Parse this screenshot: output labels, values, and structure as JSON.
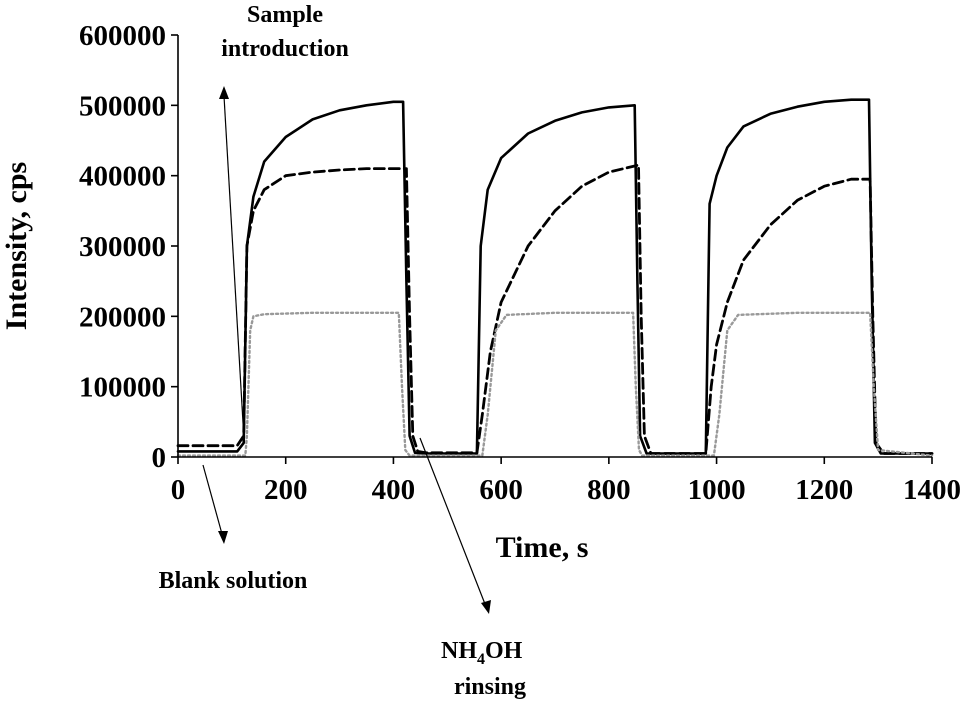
{
  "chart_data": {
    "type": "line",
    "xlabel": "Time, s",
    "ylabel": "Intensity, cps",
    "xlim": [
      0,
      1400
    ],
    "ylim": [
      0,
      600000
    ],
    "xticks": [
      0,
      200,
      400,
      600,
      800,
      1000,
      1200,
      1400
    ],
    "xtick_labels": [
      "0",
      "200",
      "400",
      "600",
      "800",
      "1000",
      "1200",
      "1400"
    ],
    "yticks": [
      0,
      100000,
      200000,
      300000,
      400000,
      500000,
      600000
    ],
    "ytick_labels": [
      "0",
      "100000",
      "200000",
      "300000",
      "400000",
      "500000",
      "600000"
    ],
    "grid": false,
    "series": [
      {
        "style": "solid",
        "color": "#000000",
        "x": [
          0,
          110,
          122,
          128,
          140,
          160,
          200,
          250,
          300,
          350,
          400,
          418,
          424,
          430,
          440,
          460,
          555,
          562,
          575,
          600,
          650,
          700,
          750,
          800,
          848,
          853,
          858,
          870,
          980,
          987,
          1000,
          1020,
          1050,
          1100,
          1150,
          1200,
          1250,
          1283,
          1288,
          1294,
          1305,
          1400
        ],
        "y": [
          8000,
          8000,
          20000,
          300000,
          370000,
          420000,
          455000,
          480000,
          493000,
          500000,
          505000,
          505000,
          250000,
          30000,
          6000,
          5000,
          5000,
          300000,
          380000,
          425000,
          460000,
          478000,
          490000,
          497000,
          500000,
          250000,
          30000,
          5000,
          5000,
          360000,
          400000,
          440000,
          470000,
          488000,
          498000,
          505000,
          508000,
          508000,
          250000,
          20000,
          5000,
          5000
        ]
      },
      {
        "style": "dashed",
        "color": "#000000",
        "x": [
          0,
          110,
          122,
          128,
          140,
          160,
          200,
          250,
          300,
          350,
          400,
          424,
          430,
          436,
          445,
          460,
          555,
          565,
          580,
          600,
          650,
          700,
          750,
          800,
          855,
          860,
          866,
          878,
          980,
          990,
          1000,
          1020,
          1050,
          1100,
          1150,
          1200,
          1250,
          1285,
          1290,
          1296,
          1310,
          1400
        ],
        "y": [
          16000,
          16000,
          30000,
          300000,
          350000,
          380000,
          400000,
          405000,
          408000,
          410000,
          410000,
          410000,
          200000,
          30000,
          8000,
          6000,
          6000,
          60000,
          150000,
          220000,
          300000,
          350000,
          385000,
          405000,
          415000,
          200000,
          30000,
          5000,
          5000,
          100000,
          160000,
          220000,
          280000,
          330000,
          365000,
          385000,
          395000,
          395000,
          200000,
          20000,
          5000,
          5000
        ]
      },
      {
        "style": "dotted",
        "color": "#999999",
        "x": [
          0,
          125,
          128,
          134,
          140,
          160,
          250,
          350,
          410,
          416,
          422,
          430,
          565,
          575,
          590,
          610,
          700,
          800,
          845,
          850,
          856,
          862,
          995,
          1005,
          1020,
          1040,
          1150,
          1270,
          1285,
          1292,
          1300,
          1400
        ],
        "y": [
          2000,
          2000,
          30000,
          180000,
          200000,
          203000,
          205000,
          205000,
          205000,
          100000,
          10000,
          2000,
          2000,
          60000,
          180000,
          202000,
          205000,
          205000,
          205000,
          100000,
          10000,
          2000,
          2000,
          60000,
          180000,
          202000,
          205000,
          205000,
          205000,
          100000,
          10000,
          2000
        ]
      }
    ],
    "annotations": [
      {
        "lines": [
          "Sample",
          "introduction"
        ]
      },
      {
        "lines": [
          "Blank solution"
        ]
      },
      {
        "lines": [
          "NH",
          "4",
          "OH",
          "rinsing"
        ]
      }
    ]
  }
}
